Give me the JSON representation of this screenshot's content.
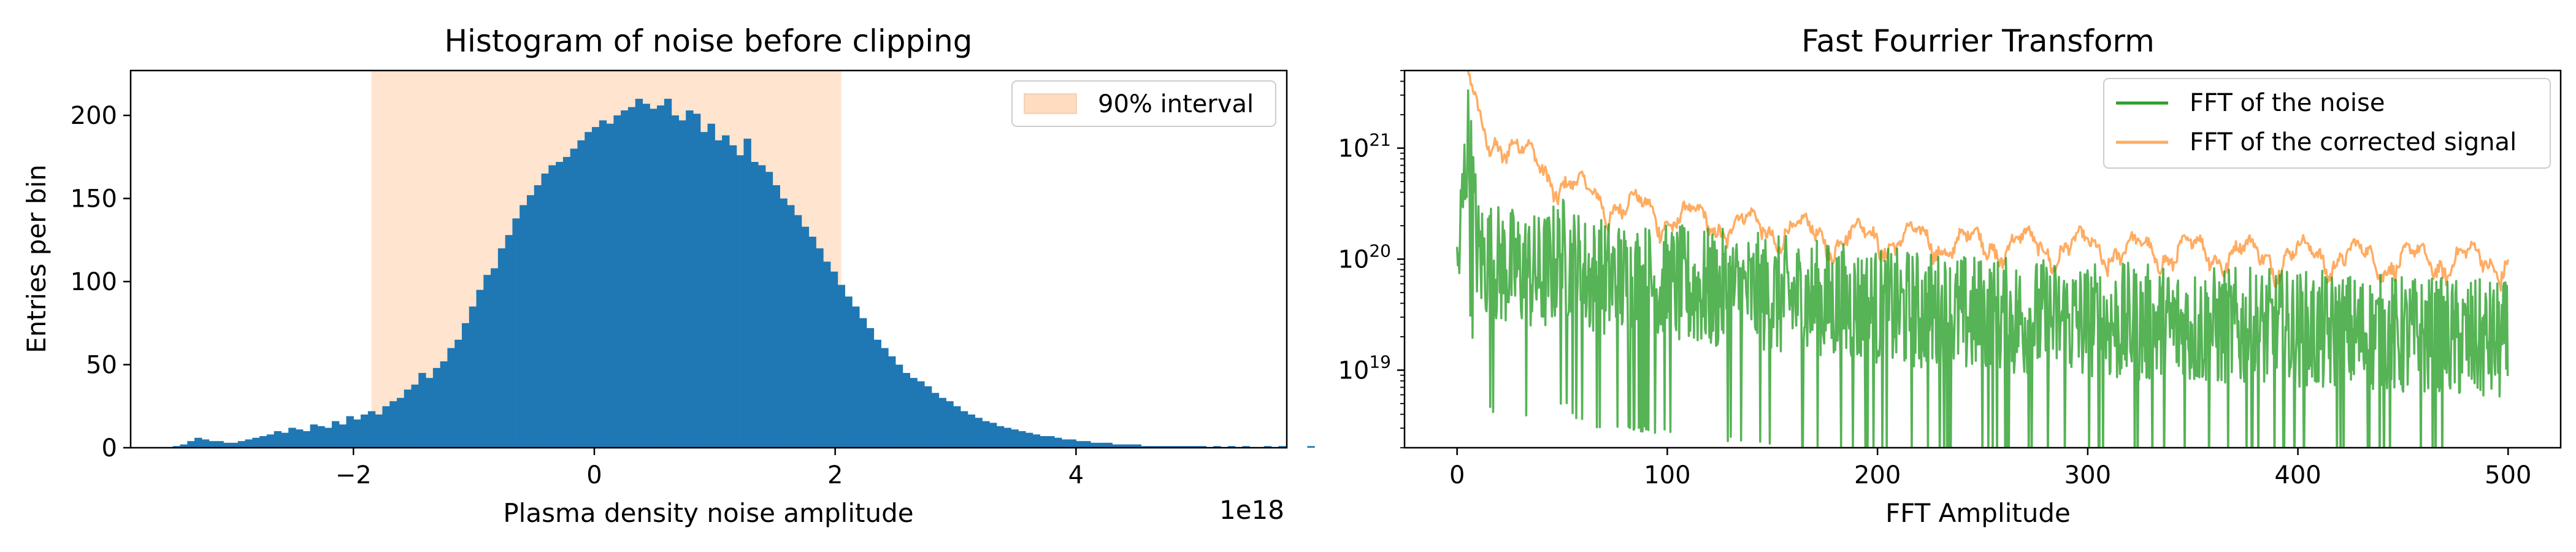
{
  "chart_data": [
    {
      "type": "histogram",
      "title": "Histogram of noise before clipping",
      "xlabel": "Plasma density noise amplitude",
      "ylabel": "Entries per bin",
      "x_offset_text": "1e18",
      "xlim": [
        -3.85,
        5.75
      ],
      "ylim": [
        0,
        227
      ],
      "x_ticks": [
        -2,
        0,
        2,
        4
      ],
      "x_tick_labels": [
        "−2",
        "0",
        "2",
        "4"
      ],
      "y_ticks": [
        0,
        50,
        100,
        150,
        200
      ],
      "y_tick_labels": [
        "0",
        "50",
        "100",
        "150",
        "200"
      ],
      "bar_color": "#1f77b4",
      "bin_start": -3.5,
      "bin_width": 0.06,
      "counts": [
        1,
        2,
        4,
        6,
        5,
        4,
        4,
        3,
        3,
        4,
        5,
        6,
        7,
        8,
        10,
        9,
        12,
        11,
        10,
        14,
        13,
        12,
        16,
        14,
        19,
        17,
        20,
        22,
        20,
        25,
        28,
        30,
        35,
        38,
        45,
        42,
        48,
        52,
        60,
        65,
        75,
        85,
        95,
        104,
        108,
        120,
        128,
        138,
        146,
        152,
        158,
        165,
        170,
        172,
        175,
        180,
        185,
        190,
        193,
        197,
        195,
        200,
        203,
        205,
        210,
        207,
        204,
        206,
        210,
        200,
        197,
        203,
        201,
        190,
        195,
        185,
        188,
        182,
        176,
        186,
        172,
        170,
        166,
        158,
        150,
        146,
        140,
        133,
        127,
        120,
        112,
        106,
        98,
        91,
        85,
        78,
        72,
        65,
        60,
        55,
        50,
        45,
        42,
        40,
        37,
        33,
        30,
        28,
        25,
        22,
        20,
        18,
        16,
        15,
        13,
        12,
        11,
        10,
        9,
        8,
        7,
        7,
        6,
        5,
        5,
        4,
        4,
        3,
        3,
        3,
        2,
        2,
        2,
        2,
        1,
        1,
        1,
        1,
        1,
        1,
        1,
        1,
        1,
        0,
        1,
        0,
        1,
        0,
        1,
        0,
        0,
        1,
        0,
        1,
        0,
        0,
        0,
        1
      ],
      "interval": {
        "label": "90% interval",
        "from": -1.85,
        "to": 2.05,
        "color": "#ffdbbf"
      },
      "legend": {
        "location": "upper right"
      }
    },
    {
      "type": "line",
      "title": "Fast Fourrier Transform",
      "xlabel": "FFT Amplitude",
      "xlim": [
        -25,
        525
      ],
      "ylog": true,
      "ylim": [
        2e+18,
        5e+21
      ],
      "x_ticks": [
        0,
        100,
        200,
        300,
        400,
        500
      ],
      "x_tick_labels": [
        "0",
        "100",
        "200",
        "300",
        "400",
        "500"
      ],
      "y_ticks": [
        1e+19,
        1e+20,
        1e+21
      ],
      "y_tick_labels": [
        {
          "base": "10",
          "exp": "19"
        },
        {
          "base": "10",
          "exp": "20"
        },
        {
          "base": "10",
          "exp": "21"
        }
      ],
      "legend": {
        "location": "upper right"
      },
      "series": [
        {
          "name": "FFT of the noise",
          "color": "#2ca02c",
          "x": [
            0,
            5,
            10,
            20,
            30,
            40,
            50,
            60,
            80,
            100,
            120,
            140,
            160,
            180,
            200,
            220,
            240,
            260,
            280,
            300,
            320,
            340,
            360,
            380,
            400,
            420,
            440,
            460,
            480,
            500
          ],
          "y": [
            7e+19,
            1.5e+21,
            1.2e+20,
            1e+20,
            9e+19,
            8e+19,
            1.2e+20,
            8e+19,
            7e+19,
            6.5e+19,
            6e+19,
            5.5e+19,
            5e+19,
            4.5e+19,
            4e+19,
            3.8e+19,
            3.5e+19,
            3.3e+19,
            3.2e+19,
            3e+19,
            2.9e+19,
            2.8e+19,
            2.7e+19,
            2.6e+19,
            2.5e+19,
            2.4e+19,
            2.3e+19,
            2.2e+19,
            2.1e+19,
            2e+19
          ]
        },
        {
          "name": "FFT of the corrected signal",
          "color": "#ff7f0e",
          "x": [
            0,
            5,
            10,
            15,
            20,
            30,
            40,
            50,
            60,
            70,
            80,
            90,
            100,
            120,
            140,
            160,
            180,
            200,
            220,
            240,
            260,
            280,
            300,
            320,
            340,
            360,
            380,
            400,
            420,
            440,
            460,
            480,
            500
          ],
          "y": [
            8e+21,
            4.5e+21,
            1.8e+21,
            1.2e+21,
            1.3e+21,
            9e+20,
            7e+20,
            5e+20,
            4e+20,
            3.5e+20,
            3e+20,
            2.8e+20,
            2.5e+20,
            2.2e+20,
            2e+20,
            1.8e+20,
            1.6e+20,
            1.6e+20,
            1.5e+20,
            1.4e+20,
            1.4e+20,
            1.3e+20,
            1.3e+20,
            1.2e+20,
            1.2e+20,
            1.2e+20,
            1.1e+20,
            1.1e+20,
            1.1e+20,
            1e+20,
            1e+20,
            1e+20,
            1e+20
          ]
        }
      ]
    }
  ]
}
